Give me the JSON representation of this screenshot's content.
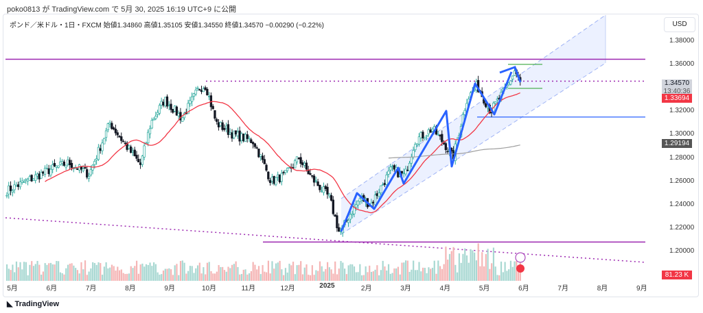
{
  "published": "poko0813 が TradingView.com で 5月 30, 2025 16:19 UTC+9 に公開",
  "legend": "ポンド／米ドル・1日・FXCM  始値1.34860  高値1.35105  安値1.34550  終値1.34570  −0.00290 (−0.22%)",
  "currency": "USD",
  "logo": "TradingView",
  "colors": {
    "up": "#26a69a",
    "down": "#131722",
    "ma_fast": "#f23645",
    "ma_slow": "#9e9e9e",
    "channel": "#2962ff",
    "purple": "#9c27b0",
    "blue": "#2962ff",
    "green": "#4caf50"
  },
  "chart_data": {
    "type": "candlestick",
    "symbol": "GBPUSD",
    "ylim": [
      1.19,
      1.39
    ],
    "y_ticks": [
      "1.38000",
      "1.36000",
      "1.32000",
      "1.30000",
      "1.28000",
      "1.26000",
      "1.24000",
      "1.22000",
      "1.20000"
    ],
    "y_tick_values": [
      1.38,
      1.36,
      1.32,
      1.3,
      1.28,
      1.26,
      1.24,
      1.22,
      1.2
    ],
    "x_ticks": [
      "5月",
      "6月",
      "7月",
      "8月",
      "9月",
      "10月",
      "11月",
      "12月",
      "2025",
      "2月",
      "3月",
      "4月",
      "5月",
      "6月",
      "7月",
      "8月",
      "9月"
    ],
    "x_tick_months": [
      0,
      1,
      2,
      3,
      4,
      5,
      6,
      7,
      8,
      9,
      10,
      11,
      12,
      13,
      14,
      15,
      16
    ],
    "price_labels": {
      "last": "1.34570",
      "countdown": "13:40:36",
      "ma_fast": "1.33694",
      "ma_slow": "1.29194",
      "volume": "81.23 K"
    },
    "price_label_values": {
      "last": 1.3457,
      "ma_fast": 1.33694,
      "ma_slow": 1.29194
    },
    "close_path_months_price": [
      [
        -0.14,
        1.252
      ],
      [
        0.47,
        1.262
      ],
      [
        0.96,
        1.27
      ],
      [
        1.43,
        1.276
      ],
      [
        1.95,
        1.266
      ],
      [
        2.48,
        1.31
      ],
      [
        2.9,
        1.29
      ],
      [
        3.26,
        1.274
      ],
      [
        3.52,
        1.31
      ],
      [
        3.87,
        1.33
      ],
      [
        4.31,
        1.314
      ],
      [
        4.75,
        1.34
      ],
      [
        4.92,
        1.342
      ],
      [
        5.18,
        1.31
      ],
      [
        5.62,
        1.3
      ],
      [
        6.14,
        1.294
      ],
      [
        6.58,
        1.26
      ],
      [
        6.93,
        1.265
      ],
      [
        7.28,
        1.28
      ],
      [
        7.63,
        1.262
      ],
      [
        8.06,
        1.246
      ],
      [
        8.32,
        1.215
      ],
      [
        8.59,
        1.232
      ],
      [
        8.85,
        1.246
      ],
      [
        9.11,
        1.24
      ],
      [
        9.63,
        1.27
      ],
      [
        9.98,
        1.265
      ],
      [
        10.24,
        1.295
      ],
      [
        10.68,
        1.305
      ],
      [
        11.03,
        1.29
      ],
      [
        11.2,
        1.28
      ],
      [
        11.55,
        1.33
      ],
      [
        11.81,
        1.342
      ],
      [
        12.16,
        1.32
      ],
      [
        12.6,
        1.342
      ],
      [
        12.77,
        1.355
      ],
      [
        12.91,
        1.3457
      ]
    ],
    "annotations": {
      "resistance": 1.3645,
      "prev_high": 1.3457,
      "support_low": 1.208,
      "support_mid": 1.315
    }
  }
}
